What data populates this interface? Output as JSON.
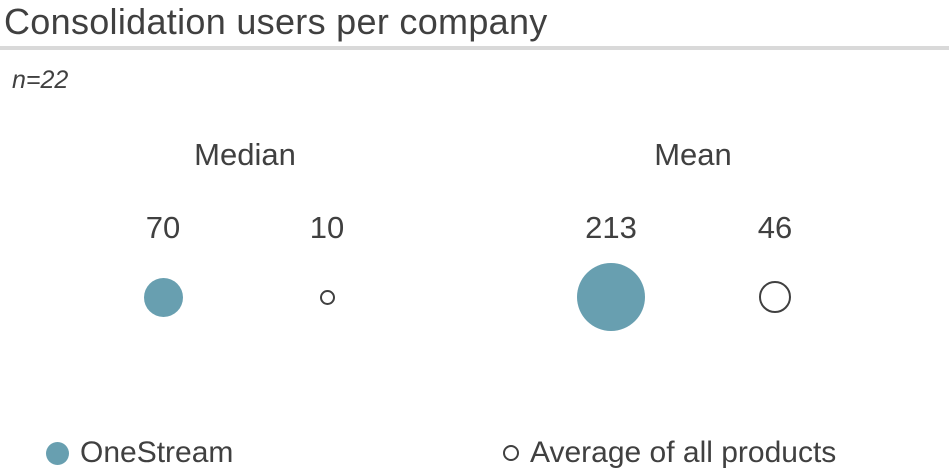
{
  "header": {
    "title": "Consolidation users per company",
    "subtitle": "n=22"
  },
  "colors": {
    "accent": "#689fb0",
    "text": "#404040",
    "divider": "#d9d9d9"
  },
  "chart_data": {
    "type": "scatter",
    "subtype": "proportional-area-bubble",
    "title": "Consolidation users per company",
    "subtitle": "n=22",
    "categories": [
      "Median",
      "Mean"
    ],
    "series": [
      {
        "name": "OneStream",
        "marker": "filled-circle",
        "color": "#689fb0",
        "values": [
          70,
          213
        ]
      },
      {
        "name": "Average of all products",
        "marker": "open-circle",
        "color": "#404040",
        "values": [
          10,
          46
        ]
      }
    ],
    "legend_position": "bottom",
    "grid": false,
    "sizing": "bubble area proportional to value"
  }
}
